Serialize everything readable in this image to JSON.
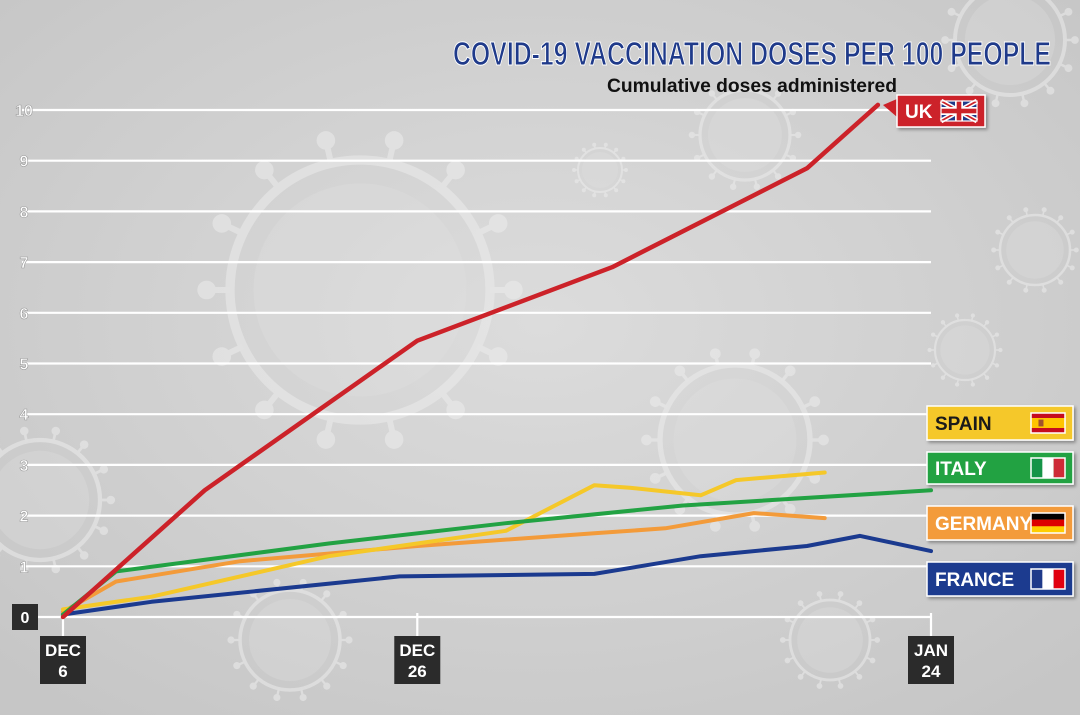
{
  "chart_data": {
    "type": "line",
    "title": "COVID-19 VACCINATION DOSES PER 100 PEOPLE",
    "subtitle": "Cumulative doses administered",
    "xlabel": "",
    "ylabel": "",
    "x_tick_labels": [
      {
        "day": 0,
        "line1": "DEC",
        "line2": "6"
      },
      {
        "day": 20,
        "line1": "DEC",
        "line2": "26"
      },
      {
        "day": 49,
        "line1": "JAN",
        "line2": "24"
      }
    ],
    "y_ticks": [
      0,
      1,
      2,
      3,
      4,
      5,
      6,
      7,
      8,
      9,
      10
    ],
    "ylim": [
      0,
      10
    ],
    "xlim_days": [
      0,
      49
    ],
    "grid": true,
    "legend_position": "right",
    "series": [
      {
        "name": "UK",
        "color": "#cc2229",
        "flag": "uk-flag-icon",
        "points": [
          [
            0,
            0
          ],
          [
            8,
            2.5
          ],
          [
            20,
            5.45
          ],
          [
            31,
            6.9
          ],
          [
            42,
            8.85
          ],
          [
            46,
            10.1
          ]
        ]
      },
      {
        "name": "SPAIN",
        "color": "#f5c829",
        "flag": "spain-flag-icon",
        "points": [
          [
            0,
            0.15
          ],
          [
            5,
            0.4
          ],
          [
            15,
            1.2
          ],
          [
            25,
            1.7
          ],
          [
            30,
            2.6
          ],
          [
            32,
            2.55
          ],
          [
            36,
            2.4
          ],
          [
            38,
            2.7
          ],
          [
            43,
            2.85
          ]
        ]
      },
      {
        "name": "ITALY",
        "color": "#22a243",
        "flag": "italy-flag-icon",
        "points": [
          [
            0,
            0.05
          ],
          [
            3,
            0.9
          ],
          [
            15,
            1.45
          ],
          [
            25,
            1.85
          ],
          [
            35,
            2.2
          ],
          [
            49,
            2.5
          ]
        ]
      },
      {
        "name": "GERMANY",
        "color": "#f39b3a",
        "flag": "germany-flag-icon",
        "points": [
          [
            0,
            0.1
          ],
          [
            3,
            0.7
          ],
          [
            10,
            1.1
          ],
          [
            20,
            1.4
          ],
          [
            30,
            1.65
          ],
          [
            34,
            1.75
          ],
          [
            39,
            2.05
          ],
          [
            43,
            1.95
          ]
        ]
      },
      {
        "name": "FRANCE",
        "color": "#1b3a8f",
        "flag": "france-flag-icon",
        "points": [
          [
            0,
            0.05
          ],
          [
            5,
            0.3
          ],
          [
            19,
            0.8
          ],
          [
            30,
            0.85
          ],
          [
            36,
            1.2
          ],
          [
            42,
            1.4
          ],
          [
            45,
            1.6
          ],
          [
            49,
            1.3
          ]
        ]
      }
    ]
  }
}
